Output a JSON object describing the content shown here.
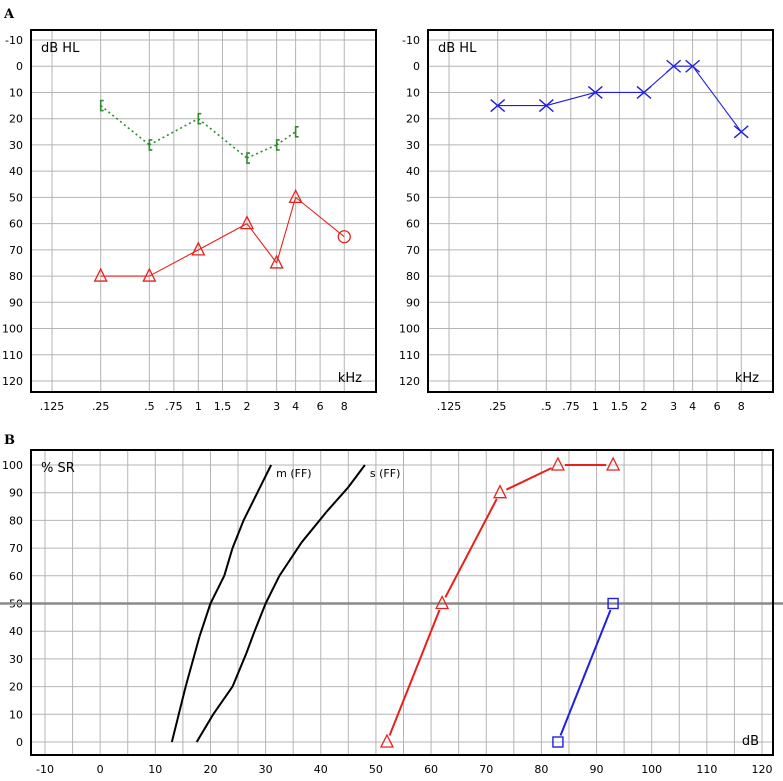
{
  "panel_labels": [
    "A",
    "B"
  ],
  "chart_data": [
    {
      "type": "line",
      "panel": "A",
      "ylabel": "dB HL",
      "xlabel": "kHz",
      "x_ticks": [
        ".125",
        ".25",
        ".5",
        ".75",
        "1",
        "1.5",
        "2",
        "3",
        "4",
        "6",
        "8"
      ],
      "y_ticks": [
        "-10",
        "0",
        "10",
        "20",
        "30",
        "40",
        "50",
        "60",
        "70",
        "80",
        "90",
        "100",
        "110",
        "120"
      ],
      "ylim": [
        -10,
        120
      ],
      "y_inverted": true,
      "grid": true,
      "series": [
        {
          "color": "#2e8b2e",
          "marker": "bracket",
          "linestyle": "dotted",
          "x": [
            ".25",
            ".5",
            "1",
            "2",
            "3",
            "4"
          ],
          "y": [
            15,
            30,
            20,
            35,
            30,
            25
          ]
        },
        {
          "color": "#e8201c",
          "marker": "triangle",
          "linestyle": "solid",
          "x": [
            ".25",
            ".5",
            "1",
            "2",
            "3",
            "4",
            "8"
          ],
          "y": [
            80,
            80,
            70,
            60,
            75,
            50,
            65
          ],
          "last_marker": "circle"
        }
      ]
    },
    {
      "type": "line",
      "panel": "A",
      "ylabel": "dB HL",
      "xlabel": "kHz",
      "x_ticks": [
        ".125",
        ".25",
        ".5",
        ".75",
        "1",
        "1.5",
        "2",
        "3",
        "4",
        "6",
        "8"
      ],
      "y_ticks": [
        "-10",
        "0",
        "10",
        "20",
        "30",
        "40",
        "50",
        "60",
        "70",
        "80",
        "90",
        "100",
        "110",
        "120"
      ],
      "ylim": [
        -10,
        120
      ],
      "y_inverted": true,
      "grid": true,
      "series": [
        {
          "color": "#1f1fe0",
          "marker": "x",
          "linestyle": "solid",
          "x": [
            ".25",
            ".5",
            "1",
            "2",
            "3",
            "4",
            "8"
          ],
          "y": [
            15,
            15,
            10,
            10,
            0,
            0,
            25
          ]
        }
      ]
    },
    {
      "type": "line",
      "panel": "B",
      "ylabel": "% SR",
      "xlabel": "dB",
      "x_ticks": [
        "-10",
        "0",
        "10",
        "20",
        "30",
        "40",
        "50",
        "60",
        "70",
        "80",
        "90",
        "100",
        "110",
        "120"
      ],
      "y_ticks": [
        "0",
        "10",
        "20",
        "30",
        "40",
        "50",
        "60",
        "70",
        "80",
        "90",
        "100"
      ],
      "xlim": [
        -10,
        120
      ],
      "ylim": [
        0,
        100
      ],
      "grid": true,
      "reference_line_y": 50,
      "series": [
        {
          "name": "m (FF)",
          "color": "#000000",
          "marker": "none",
          "points": [
            [
              13,
              0
            ],
            [
              15.5,
              20
            ],
            [
              18,
              38
            ],
            [
              20,
              50
            ],
            [
              22.5,
              60
            ],
            [
              24,
              70
            ],
            [
              26,
              80
            ],
            [
              28.5,
              90
            ],
            [
              31,
              100
            ]
          ]
        },
        {
          "name": "s (FF)",
          "color": "#000000",
          "marker": "none",
          "points": [
            [
              17.5,
              0
            ],
            [
              20.5,
              10
            ],
            [
              24,
              20
            ],
            [
              26.5,
              32
            ],
            [
              28,
              40
            ],
            [
              30,
              50
            ],
            [
              32.5,
              60
            ],
            [
              36.5,
              72
            ],
            [
              41,
              83
            ],
            [
              45,
              92
            ],
            [
              48,
              100
            ]
          ]
        },
        {
          "color": "#e8201c",
          "marker": "triangle",
          "points": [
            [
              52,
              0
            ],
            [
              62,
              50
            ],
            [
              72.5,
              90
            ],
            [
              83,
              100
            ],
            [
              93,
              100
            ]
          ]
        },
        {
          "color": "#1f1fe0",
          "marker": "square",
          "points": [
            [
              83,
              0
            ],
            [
              93,
              50
            ]
          ]
        }
      ]
    }
  ]
}
